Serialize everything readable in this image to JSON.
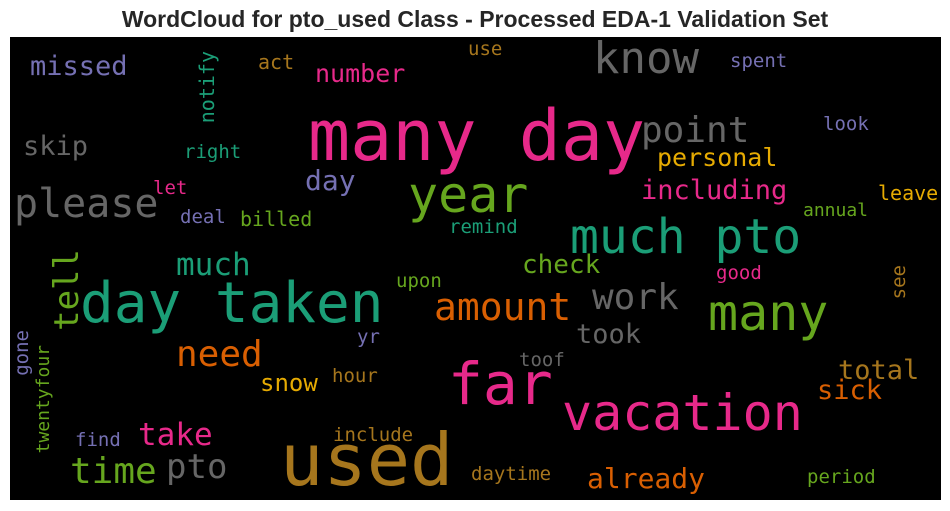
{
  "title": "WordCloud for pto_used Class - Processed EDA-1 Validation Set",
  "chart_data": {
    "type": "wordcloud",
    "background": "#000000",
    "colormap": "Dark2",
    "words": [
      {
        "text": "many day",
        "color": "#e7298a"
      },
      {
        "text": "used",
        "color": "#a6761d"
      },
      {
        "text": "day taken",
        "color": "#1b9e77"
      },
      {
        "text": "far",
        "color": "#e7298a"
      },
      {
        "text": "vacation",
        "color": "#e7298a"
      },
      {
        "text": "much pto",
        "color": "#1b9e77"
      },
      {
        "text": "year",
        "color": "#66a61e"
      },
      {
        "text": "many",
        "color": "#66a61e"
      },
      {
        "text": "know",
        "color": "#666666"
      },
      {
        "text": "please",
        "color": "#666666"
      },
      {
        "text": "point",
        "color": "#666666"
      },
      {
        "text": "amount",
        "color": "#d95f02"
      },
      {
        "text": "work",
        "color": "#666666"
      },
      {
        "text": "need",
        "color": "#d95f02"
      },
      {
        "text": "time",
        "color": "#66a61e"
      },
      {
        "text": "pto",
        "color": "#666666"
      },
      {
        "text": "take",
        "color": "#e7298a"
      },
      {
        "text": "tell",
        "color": "#66a61e"
      },
      {
        "text": "much",
        "color": "#1b9e77"
      },
      {
        "text": "missed",
        "color": "#7570b3"
      },
      {
        "text": "day",
        "color": "#7570b3"
      },
      {
        "text": "number",
        "color": "#e7298a"
      },
      {
        "text": "including",
        "color": "#e7298a"
      },
      {
        "text": "personal",
        "color": "#e6ab02"
      },
      {
        "text": "total",
        "color": "#a6761d"
      },
      {
        "text": "sick",
        "color": "#d95f02"
      },
      {
        "text": "already",
        "color": "#d95f02"
      },
      {
        "text": "check",
        "color": "#66a61e"
      },
      {
        "text": "took",
        "color": "#666666"
      },
      {
        "text": "skip",
        "color": "#666666"
      },
      {
        "text": "snow",
        "color": "#e6ab02"
      },
      {
        "text": "notify",
        "color": "#1b9e77"
      },
      {
        "text": "right",
        "color": "#1b9e77"
      },
      {
        "text": "act",
        "color": "#a6761d"
      },
      {
        "text": "use",
        "color": "#a6761d"
      },
      {
        "text": "spent",
        "color": "#7570b3"
      },
      {
        "text": "look",
        "color": "#7570b3"
      },
      {
        "text": "leave",
        "color": "#e6ab02"
      },
      {
        "text": "annual",
        "color": "#66a61e"
      },
      {
        "text": "let",
        "color": "#e7298a"
      },
      {
        "text": "deal",
        "color": "#7570b3"
      },
      {
        "text": "billed",
        "color": "#66a61e"
      },
      {
        "text": "remind",
        "color": "#1b9e77"
      },
      {
        "text": "good",
        "color": "#e7298a"
      },
      {
        "text": "upon",
        "color": "#66a61e"
      },
      {
        "text": "see",
        "color": "#a6761d"
      },
      {
        "text": "yr",
        "color": "#7570b3"
      },
      {
        "text": "toof",
        "color": "#666666"
      },
      {
        "text": "hour",
        "color": "#a6761d"
      },
      {
        "text": "gone",
        "color": "#7570b3"
      },
      {
        "text": "twentyfour",
        "color": "#66a61e"
      },
      {
        "text": "find",
        "color": "#7570b3"
      },
      {
        "text": "include",
        "color": "#a6761d"
      },
      {
        "text": "daytime",
        "color": "#a6761d"
      },
      {
        "text": "period",
        "color": "#66a61e"
      }
    ]
  }
}
